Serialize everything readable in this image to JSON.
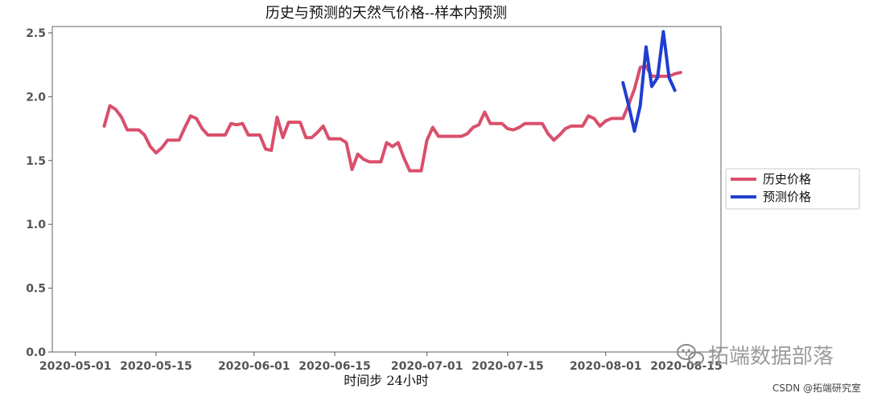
{
  "chart_data": {
    "type": "line",
    "title": "历史与预测的天然气价格--样本内预测",
    "xlabel": "时间步 24小时",
    "ylabel": "",
    "ylim": [
      0,
      2.55
    ],
    "y_ticks": [
      0.0,
      0.5,
      1.0,
      1.5,
      2.0,
      2.5
    ],
    "y_tick_labels": [
      "0.0",
      "0.5",
      "1.0",
      "1.5",
      "2.0",
      "2.5"
    ],
    "x_range": [
      "2020-04-27",
      "2020-08-21"
    ],
    "x_ticks": [
      "2020-05-01",
      "2020-05-15",
      "2020-06-01",
      "2020-06-15",
      "2020-07-01",
      "2020-07-15",
      "2020-08-01",
      "2020-08-15"
    ],
    "x_tick_labels": [
      "2020-05-01",
      "2020-05-15",
      "2020-06-01",
      "2020-06-15",
      "2020-07-01",
      "2020-07-15",
      "2020-08-01",
      "2020-08-15"
    ],
    "grid": false,
    "legend_position": "right",
    "series": [
      {
        "name": "历史价格",
        "color": "#d94f6c",
        "points": [
          [
            "2020-05-06",
            1.77
          ],
          [
            "2020-05-07",
            1.93
          ],
          [
            "2020-05-08",
            1.9
          ],
          [
            "2020-05-09",
            1.84
          ],
          [
            "2020-05-10",
            1.74
          ],
          [
            "2020-05-11",
            1.74
          ],
          [
            "2020-05-12",
            1.74
          ],
          [
            "2020-05-13",
            1.7
          ],
          [
            "2020-05-14",
            1.61
          ],
          [
            "2020-05-15",
            1.56
          ],
          [
            "2020-05-16",
            1.6
          ],
          [
            "2020-05-17",
            1.66
          ],
          [
            "2020-05-18",
            1.66
          ],
          [
            "2020-05-19",
            1.66
          ],
          [
            "2020-05-20",
            1.76
          ],
          [
            "2020-05-21",
            1.85
          ],
          [
            "2020-05-22",
            1.83
          ],
          [
            "2020-05-23",
            1.75
          ],
          [
            "2020-05-24",
            1.7
          ],
          [
            "2020-05-25",
            1.7
          ],
          [
            "2020-05-26",
            1.7
          ],
          [
            "2020-05-27",
            1.7
          ],
          [
            "2020-05-28",
            1.79
          ],
          [
            "2020-05-29",
            1.78
          ],
          [
            "2020-05-30",
            1.79
          ],
          [
            "2020-05-31",
            1.7
          ],
          [
            "2020-06-01",
            1.7
          ],
          [
            "2020-06-02",
            1.7
          ],
          [
            "2020-06-03",
            1.59
          ],
          [
            "2020-06-04",
            1.58
          ],
          [
            "2020-06-05",
            1.84
          ],
          [
            "2020-06-06",
            1.68
          ],
          [
            "2020-06-07",
            1.8
          ],
          [
            "2020-06-08",
            1.8
          ],
          [
            "2020-06-09",
            1.8
          ],
          [
            "2020-06-10",
            1.68
          ],
          [
            "2020-06-11",
            1.68
          ],
          [
            "2020-06-12",
            1.72
          ],
          [
            "2020-06-13",
            1.77
          ],
          [
            "2020-06-14",
            1.67
          ],
          [
            "2020-06-15",
            1.67
          ],
          [
            "2020-06-16",
            1.67
          ],
          [
            "2020-06-17",
            1.64
          ],
          [
            "2020-06-18",
            1.43
          ],
          [
            "2020-06-19",
            1.55
          ],
          [
            "2020-06-20",
            1.51
          ],
          [
            "2020-06-21",
            1.49
          ],
          [
            "2020-06-22",
            1.49
          ],
          [
            "2020-06-23",
            1.49
          ],
          [
            "2020-06-24",
            1.64
          ],
          [
            "2020-06-25",
            1.61
          ],
          [
            "2020-06-26",
            1.64
          ],
          [
            "2020-06-27",
            1.52
          ],
          [
            "2020-06-28",
            1.42
          ],
          [
            "2020-06-29",
            1.42
          ],
          [
            "2020-06-30",
            1.42
          ],
          [
            "2020-07-01",
            1.66
          ],
          [
            "2020-07-02",
            1.76
          ],
          [
            "2020-07-03",
            1.69
          ],
          [
            "2020-07-04",
            1.69
          ],
          [
            "2020-07-05",
            1.69
          ],
          [
            "2020-07-06",
            1.69
          ],
          [
            "2020-07-07",
            1.69
          ],
          [
            "2020-07-08",
            1.71
          ],
          [
            "2020-07-09",
            1.76
          ],
          [
            "2020-07-10",
            1.78
          ],
          [
            "2020-07-11",
            1.88
          ],
          [
            "2020-07-12",
            1.79
          ],
          [
            "2020-07-13",
            1.79
          ],
          [
            "2020-07-14",
            1.79
          ],
          [
            "2020-07-15",
            1.75
          ],
          [
            "2020-07-16",
            1.74
          ],
          [
            "2020-07-17",
            1.76
          ],
          [
            "2020-07-18",
            1.79
          ],
          [
            "2020-07-19",
            1.79
          ],
          [
            "2020-07-20",
            1.79
          ],
          [
            "2020-07-21",
            1.79
          ],
          [
            "2020-07-22",
            1.71
          ],
          [
            "2020-07-23",
            1.66
          ],
          [
            "2020-07-24",
            1.7
          ],
          [
            "2020-07-25",
            1.75
          ],
          [
            "2020-07-26",
            1.77
          ],
          [
            "2020-07-27",
            1.77
          ],
          [
            "2020-07-28",
            1.77
          ],
          [
            "2020-07-29",
            1.85
          ],
          [
            "2020-07-30",
            1.83
          ],
          [
            "2020-07-31",
            1.77
          ],
          [
            "2020-08-01",
            1.81
          ],
          [
            "2020-08-02",
            1.83
          ],
          [
            "2020-08-03",
            1.83
          ],
          [
            "2020-08-04",
            1.83
          ],
          [
            "2020-08-05",
            1.94
          ],
          [
            "2020-08-06",
            2.06
          ],
          [
            "2020-08-07",
            2.23
          ],
          [
            "2020-08-08",
            2.24
          ],
          [
            "2020-08-09",
            2.16
          ],
          [
            "2020-08-10",
            2.16
          ],
          [
            "2020-08-11",
            2.16
          ],
          [
            "2020-08-12",
            2.16
          ],
          [
            "2020-08-13",
            2.18
          ],
          [
            "2020-08-14",
            2.19
          ]
        ]
      },
      {
        "name": "预测价格",
        "color": "#1f3fd1",
        "points": [
          [
            "2020-08-04",
            2.11
          ],
          [
            "2020-08-05",
            1.93
          ],
          [
            "2020-08-06",
            1.73
          ],
          [
            "2020-08-07",
            1.93
          ],
          [
            "2020-08-08",
            2.39
          ],
          [
            "2020-08-09",
            2.08
          ],
          [
            "2020-08-10",
            2.15
          ],
          [
            "2020-08-11",
            2.51
          ],
          [
            "2020-08-12",
            2.15
          ],
          [
            "2020-08-13",
            2.05
          ]
        ]
      }
    ]
  },
  "watermark": {
    "text": "拓端数据部落",
    "icon": "wechat-icon"
  },
  "credit": "CSDN @拓端研究室"
}
